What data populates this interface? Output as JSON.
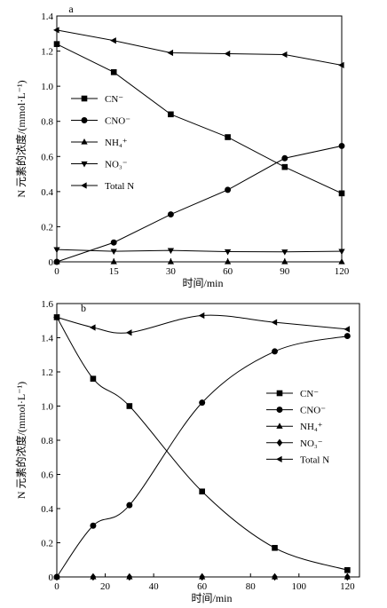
{
  "chart_data": [
    {
      "panel_label": "a",
      "type": "line",
      "xlabel": "时间/min",
      "ylabel": "N 元素的浓度/(mmol·L⁻¹)",
      "x_categories": [
        "0",
        "15",
        "30",
        "60",
        "90",
        "120"
      ],
      "ylim": [
        0,
        1.4
      ],
      "yticks": [
        "0",
        "0.2",
        "0.4",
        "0.6",
        "0.8",
        "1.0",
        "1.2",
        "1.4"
      ],
      "legend_position": "middle-left",
      "series": [
        {
          "name": "CN⁻",
          "marker": "square",
          "values": [
            1.24,
            1.08,
            0.84,
            0.71,
            0.54,
            0.39
          ]
        },
        {
          "name": "CNO⁻",
          "marker": "circle",
          "values": [
            0.0,
            0.11,
            0.27,
            0.41,
            0.59,
            0.66
          ]
        },
        {
          "name": "NH₄⁺",
          "marker": "triangle-up",
          "values": [
            0.0,
            0.0,
            0.0,
            0.0,
            0.0,
            0.0
          ]
        },
        {
          "name": "NO₃⁻",
          "marker": "triangle-down",
          "values": [
            0.07,
            0.06,
            0.065,
            0.058,
            0.057,
            0.06
          ]
        },
        {
          "name": "Total N",
          "marker": "triangle-left",
          "values": [
            1.32,
            1.26,
            1.19,
            1.185,
            1.18,
            1.12
          ]
        }
      ]
    },
    {
      "panel_label": "b",
      "type": "line",
      "xlabel": "时间/min",
      "ylabel": "N 元素的浓度/(mmol·L⁻¹)",
      "xlim": [
        0,
        125
      ],
      "xticks": [
        "0",
        "20",
        "40",
        "60",
        "80",
        "100",
        "120"
      ],
      "ylim": [
        0,
        1.6
      ],
      "yticks": [
        "0",
        "0.2",
        "0.4",
        "0.6",
        "0.8",
        "1.0",
        "1.2",
        "1.4",
        "1.6"
      ],
      "legend_position": "right",
      "series": [
        {
          "name": "CN⁻",
          "marker": "square",
          "x": [
            0,
            15,
            30,
            60,
            90,
            120
          ],
          "values": [
            1.52,
            1.16,
            1.0,
            0.5,
            0.17,
            0.04
          ]
        },
        {
          "name": "CNO⁻",
          "marker": "circle",
          "x": [
            0,
            15,
            30,
            60,
            90,
            120
          ],
          "values": [
            0.0,
            0.3,
            0.42,
            1.02,
            1.32,
            1.41
          ]
        },
        {
          "name": "NH₄⁺",
          "marker": "triangle-up",
          "x": [
            0,
            15,
            30,
            60,
            90,
            120
          ],
          "values": [
            0.0,
            0.0,
            0.0,
            0.0,
            0.0,
            0.0
          ]
        },
        {
          "name": "NO₃⁻",
          "marker": "diamond",
          "x": [
            0,
            15,
            30,
            60,
            90,
            120
          ],
          "values": [
            0.0,
            0.0,
            0.0,
            0.0,
            0.0,
            0.0
          ]
        },
        {
          "name": "Total N",
          "marker": "triangle-left",
          "x": [
            0,
            15,
            30,
            60,
            90,
            120
          ],
          "values": [
            1.52,
            1.46,
            1.43,
            1.53,
            1.49,
            1.45
          ]
        }
      ]
    }
  ]
}
